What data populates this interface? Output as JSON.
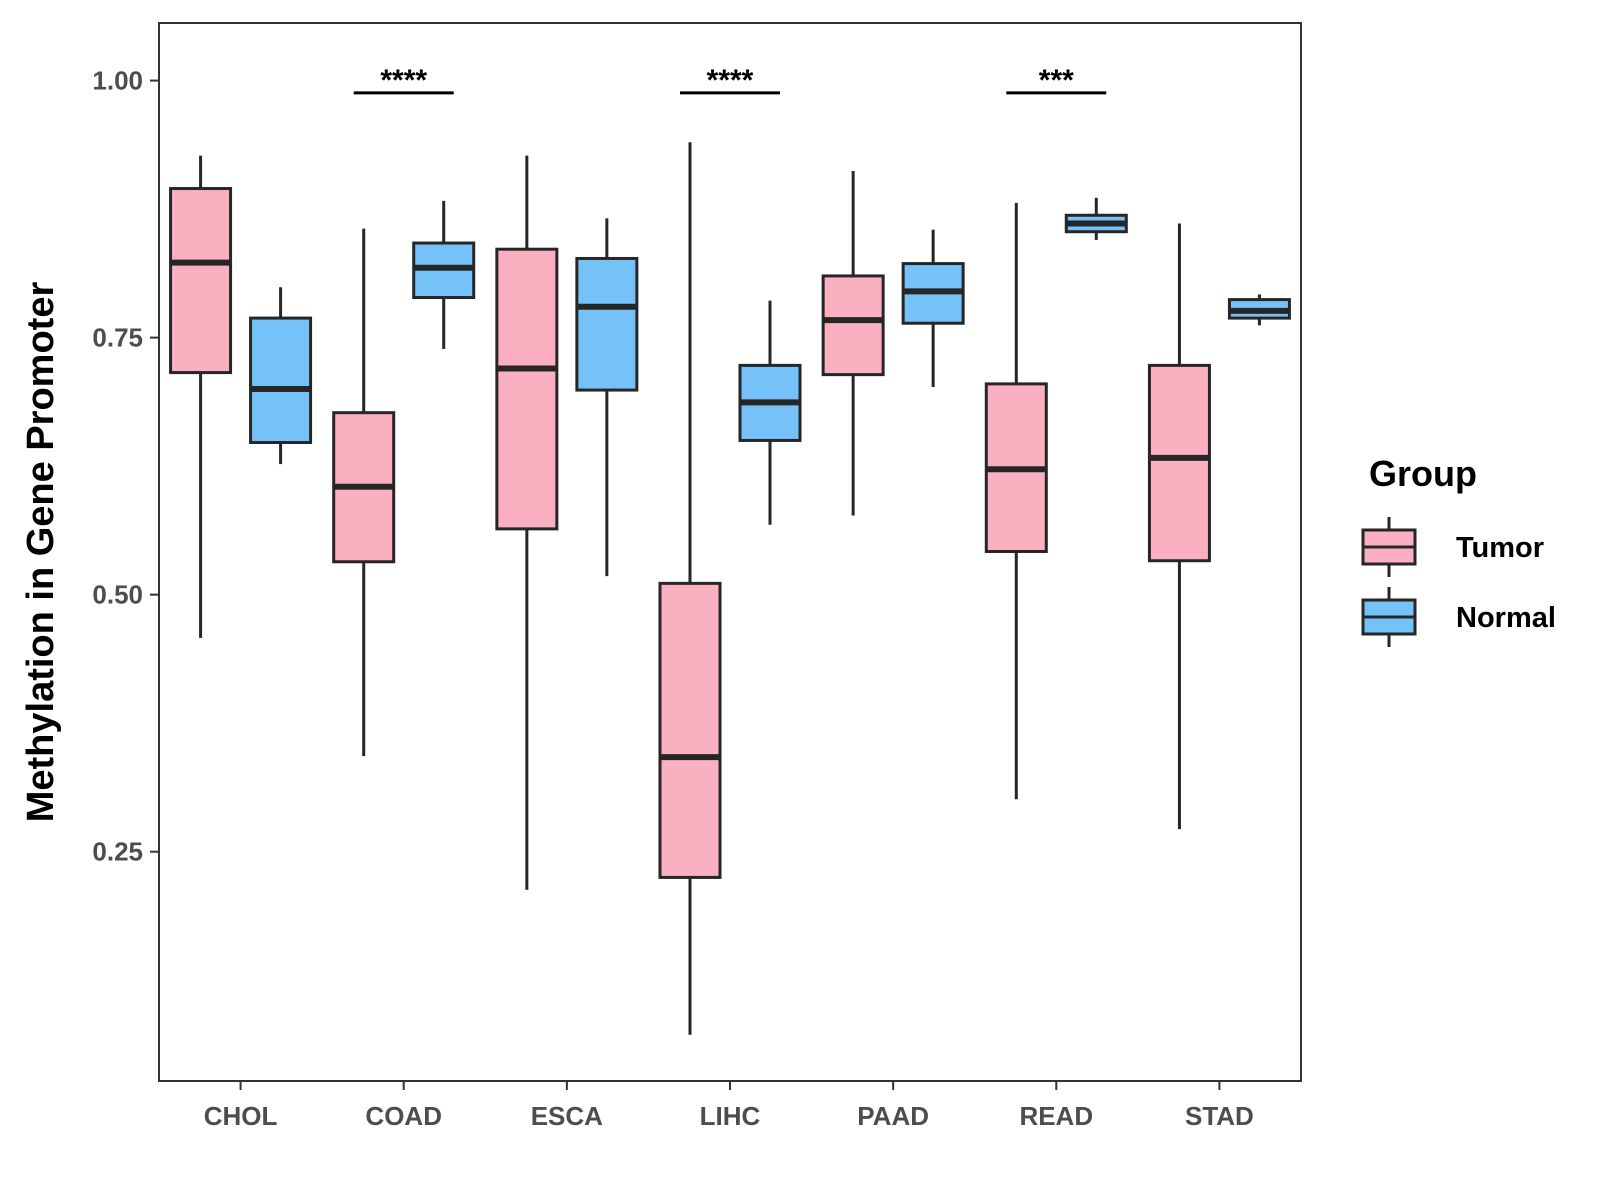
{
  "chart_data": {
    "type": "boxplot",
    "title": "",
    "xlabel": "",
    "ylabel": "Methylation in Gene Promoter",
    "ylim": [
      0.027,
      1.056
    ],
    "yticks": [
      0.25,
      0.5,
      0.75,
      1.0
    ],
    "ytick_labels": [
      "0.25",
      "0.50",
      "0.75",
      "1.00"
    ],
    "categories": [
      "CHOL",
      "COAD",
      "ESCA",
      "LIHC",
      "PAAD",
      "READ",
      "STAD"
    ],
    "legend_title": "Group",
    "legend_position": "right",
    "series": [
      {
        "name": "Tumor",
        "color": "#fbb0c1",
        "boxes": [
          {
            "min": 0.458,
            "q1": 0.716,
            "median": 0.823,
            "q3": 0.895,
            "max": 0.927
          },
          {
            "min": 0.343,
            "q1": 0.532,
            "median": 0.605,
            "q3": 0.677,
            "max": 0.856
          },
          {
            "min": 0.213,
            "q1": 0.564,
            "median": 0.72,
            "q3": 0.836,
            "max": 0.927
          },
          {
            "min": 0.072,
            "q1": 0.225,
            "median": 0.342,
            "q3": 0.511,
            "max": 0.94
          },
          {
            "min": 0.577,
            "q1": 0.714,
            "median": 0.767,
            "q3": 0.81,
            "max": 0.912
          },
          {
            "min": 0.301,
            "q1": 0.542,
            "median": 0.622,
            "q3": 0.705,
            "max": 0.881
          },
          {
            "min": 0.272,
            "q1": 0.533,
            "median": 0.633,
            "q3": 0.723,
            "max": 0.861
          }
        ]
      },
      {
        "name": "Normal",
        "color": "#74c2f8",
        "boxes": [
          {
            "min": 0.627,
            "q1": 0.648,
            "median": 0.7,
            "q3": 0.769,
            "max": 0.799
          },
          {
            "min": 0.739,
            "q1": 0.789,
            "median": 0.818,
            "q3": 0.842,
            "max": 0.883
          },
          {
            "min": 0.518,
            "q1": 0.699,
            "median": 0.78,
            "q3": 0.827,
            "max": 0.866
          },
          {
            "min": 0.568,
            "q1": 0.65,
            "median": 0.687,
            "q3": 0.723,
            "max": 0.786
          },
          {
            "min": 0.702,
            "q1": 0.764,
            "median": 0.795,
            "q3": 0.822,
            "max": 0.855
          },
          {
            "min": 0.845,
            "q1": 0.853,
            "median": 0.861,
            "q3": 0.869,
            "max": 0.886
          },
          {
            "min": 0.762,
            "q1": 0.769,
            "median": 0.776,
            "q3": 0.787,
            "max": 0.792
          }
        ]
      }
    ],
    "annotations": [
      {
        "category": "COAD",
        "label": "****",
        "y": 0.988
      },
      {
        "category": "LIHC",
        "label": "****",
        "y": 0.988
      },
      {
        "category": "READ",
        "label": "***",
        "y": 0.988
      }
    ]
  }
}
